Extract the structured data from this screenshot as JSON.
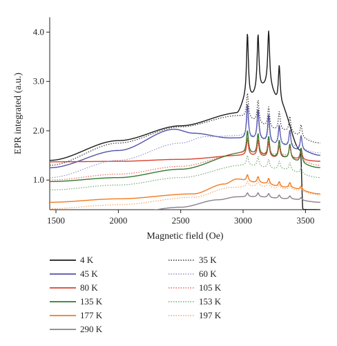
{
  "chart_data": {
    "type": "line",
    "xlabel": "Magnetic field (Oe)",
    "ylabel": "EPR integrated (a.u.)",
    "xlim": [
      1450,
      3620
    ],
    "ylim": [
      0.4,
      4.3
    ],
    "x_ticks": [
      1500,
      2000,
      2500,
      3000,
      3500
    ],
    "y_ticks": [
      1.0,
      2.0,
      3.0,
      4.0
    ],
    "y_tick_labels": [
      "1.0",
      "2.0",
      "3.0",
      "4.0"
    ],
    "grid": false,
    "legend_placement": "below",
    "series": [
      {
        "name": "4 K",
        "color": "#1a1a1a",
        "style": "solid",
        "base": [
          [
            1450,
            1.4
          ],
          [
            2000,
            1.8
          ],
          [
            2500,
            2.1
          ],
          [
            2950,
            2.35
          ],
          [
            3020,
            2.6
          ],
          [
            3200,
            2.9
          ],
          [
            3300,
            2.5
          ],
          [
            3460,
            1.6
          ],
          [
            3480,
            0.4
          ]
        ],
        "peaks": [
          [
            3035,
            1.35
          ],
          [
            3120,
            1.15
          ],
          [
            3205,
            1.1
          ],
          [
            3290,
            0.8
          ]
        ]
      },
      {
        "name": "45 K",
        "color": "#5050a8",
        "style": "solid",
        "base": [
          [
            1450,
            1.25
          ],
          [
            2000,
            1.6
          ],
          [
            2450,
            2.03
          ],
          [
            2600,
            1.95
          ],
          [
            2900,
            1.85
          ],
          [
            3100,
            1.82
          ],
          [
            3300,
            1.7
          ],
          [
            3450,
            1.6
          ],
          [
            3620,
            1.5
          ]
        ],
        "peaks": [
          [
            3035,
            0.7
          ],
          [
            3120,
            0.6
          ],
          [
            3205,
            0.55
          ],
          [
            3290,
            0.4
          ],
          [
            3375,
            0.35
          ],
          [
            3465,
            0.3
          ]
        ]
      },
      {
        "name": "80 K",
        "color": "#d8402e",
        "style": "solid",
        "base": [
          [
            1450,
            1.37
          ],
          [
            2000,
            1.38
          ],
          [
            2500,
            1.42
          ],
          [
            3000,
            1.5
          ],
          [
            3300,
            1.45
          ],
          [
            3620,
            1.38
          ]
        ],
        "peaks": [
          [
            3035,
            0.35
          ],
          [
            3120,
            0.32
          ],
          [
            3205,
            0.3
          ],
          [
            3290,
            0.25
          ],
          [
            3375,
            0.25
          ],
          [
            3465,
            0.22
          ]
        ]
      },
      {
        "name": "135 K",
        "color": "#2e7a2e",
        "style": "solid",
        "base": [
          [
            1450,
            0.97
          ],
          [
            2000,
            1.05
          ],
          [
            2500,
            1.22
          ],
          [
            3000,
            1.55
          ],
          [
            3300,
            1.45
          ],
          [
            3620,
            1.25
          ]
        ],
        "peaks": [
          [
            3035,
            0.45
          ],
          [
            3120,
            0.42
          ],
          [
            3205,
            0.4
          ],
          [
            3290,
            0.35
          ],
          [
            3375,
            0.3
          ],
          [
            3465,
            0.3
          ]
        ]
      },
      {
        "name": "177 K",
        "color": "#f07a20",
        "style": "solid",
        "base": [
          [
            1450,
            0.55
          ],
          [
            2000,
            0.62
          ],
          [
            2600,
            0.72
          ],
          [
            2850,
            0.92
          ],
          [
            2950,
            1.02
          ],
          [
            3100,
            0.95
          ],
          [
            3350,
            0.85
          ],
          [
            3620,
            0.72
          ]
        ],
        "peaks": [
          [
            3035,
            0.13
          ],
          [
            3120,
            0.12
          ],
          [
            3205,
            0.12
          ],
          [
            3290,
            0.1
          ],
          [
            3375,
            0.1
          ],
          [
            3465,
            0.08
          ]
        ]
      },
      {
        "name": "290 K",
        "color": "#8a7f8a",
        "style": "solid",
        "base": [
          [
            1450,
            0.2
          ],
          [
            2000,
            0.3
          ],
          [
            2500,
            0.45
          ],
          [
            2800,
            0.6
          ],
          [
            2950,
            0.66
          ],
          [
            3100,
            0.66
          ],
          [
            3350,
            0.62
          ],
          [
            3620,
            0.55
          ]
        ],
        "peaks": [
          [
            3035,
            0.08
          ],
          [
            3120,
            0.08
          ],
          [
            3205,
            0.08
          ],
          [
            3290,
            0.07
          ],
          [
            3375,
            0.06
          ],
          [
            3465,
            0.05
          ]
        ]
      },
      {
        "name": "35 K",
        "color": "#333333",
        "style": "dotted",
        "base": [
          [
            1450,
            1.3
          ],
          [
            2000,
            1.75
          ],
          [
            2500,
            2.08
          ],
          [
            2950,
            2.3
          ],
          [
            3300,
            2.0
          ],
          [
            3620,
            1.75
          ]
        ],
        "peaks": [
          [
            3035,
            0.5
          ],
          [
            3120,
            0.45
          ],
          [
            3205,
            0.42
          ],
          [
            3290,
            0.38
          ],
          [
            3375,
            0.32
          ],
          [
            3465,
            0.25
          ]
        ]
      },
      {
        "name": "60 K",
        "color": "#8f8fd0",
        "style": "dotted",
        "base": [
          [
            1450,
            1.05
          ],
          [
            2000,
            1.4
          ],
          [
            2500,
            1.75
          ],
          [
            2700,
            1.88
          ],
          [
            3000,
            1.9
          ],
          [
            3300,
            1.72
          ],
          [
            3620,
            1.55
          ]
        ],
        "peaks": [
          [
            3035,
            0.4
          ],
          [
            3120,
            0.38
          ],
          [
            3205,
            0.35
          ],
          [
            3290,
            0.3
          ],
          [
            3375,
            0.28
          ],
          [
            3465,
            0.25
          ]
        ]
      },
      {
        "name": "105 K",
        "color": "#f06050",
        "style": "dotted",
        "base": [
          [
            1450,
            1.0
          ],
          [
            2000,
            1.12
          ],
          [
            2500,
            1.28
          ],
          [
            3000,
            1.55
          ],
          [
            3300,
            1.5
          ],
          [
            3620,
            1.3
          ]
        ],
        "peaks": [
          [
            3035,
            0.3
          ],
          [
            3120,
            0.28
          ],
          [
            3205,
            0.27
          ],
          [
            3290,
            0.22
          ],
          [
            3375,
            0.2
          ],
          [
            3465,
            0.18
          ]
        ]
      },
      {
        "name": "153 K",
        "color": "#6aaa6a",
        "style": "dotted",
        "base": [
          [
            1450,
            0.8
          ],
          [
            2000,
            0.9
          ],
          [
            2500,
            1.05
          ],
          [
            3000,
            1.3
          ],
          [
            3300,
            1.22
          ],
          [
            3620,
            1.05
          ]
        ],
        "peaks": [
          [
            3035,
            0.2
          ],
          [
            3120,
            0.2
          ],
          [
            3205,
            0.18
          ],
          [
            3290,
            0.16
          ],
          [
            3375,
            0.15
          ],
          [
            3465,
            0.12
          ]
        ]
      },
      {
        "name": "197 K",
        "color": "#f8a060",
        "style": "dotted",
        "base": [
          [
            1450,
            0.42
          ],
          [
            2000,
            0.5
          ],
          [
            2600,
            0.65
          ],
          [
            2900,
            0.85
          ],
          [
            3100,
            0.88
          ],
          [
            3350,
            0.82
          ],
          [
            3620,
            0.7
          ]
        ],
        "peaks": [
          [
            3035,
            0.1
          ],
          [
            3120,
            0.1
          ],
          [
            3205,
            0.1
          ],
          [
            3290,
            0.08
          ],
          [
            3375,
            0.07
          ],
          [
            3465,
            0.06
          ]
        ]
      }
    ]
  }
}
